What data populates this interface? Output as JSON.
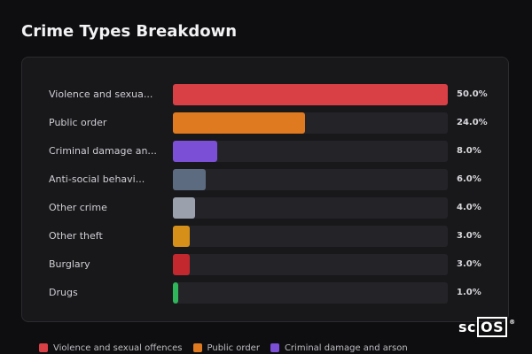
{
  "title": "Crime Types Breakdown",
  "chart_data": {
    "type": "bar",
    "orientation": "horizontal",
    "categories": [
      "Violence and sexual offences",
      "Public order",
      "Criminal damage and arson",
      "Anti-social behaviour",
      "Other crime",
      "Other theft",
      "Burglary",
      "Drugs"
    ],
    "display_labels": [
      "Violence and sexua...",
      "Public order",
      "Criminal damage an...",
      "Anti-social behavi...",
      "Other crime",
      "Other theft",
      "Burglary",
      "Drugs"
    ],
    "values": [
      50.0,
      24.0,
      8.0,
      6.0,
      4.0,
      3.0,
      3.0,
      1.0
    ],
    "value_labels": [
      "50.0%",
      "24.0%",
      "8.0%",
      "6.0%",
      "4.0%",
      "3.0%",
      "3.0%",
      "1.0%"
    ],
    "colors": [
      "#d94046",
      "#e07a20",
      "#7b4fd6",
      "#5d6b80",
      "#9aa1ad",
      "#d6901a",
      "#c2282e",
      "#2fb55a"
    ],
    "xlim": [
      0,
      50
    ],
    "grid": false,
    "legend_position": "bottom"
  },
  "legend": [
    {
      "label": "Violence and sexual offences",
      "color": "#d94046"
    },
    {
      "label": "Public order",
      "color": "#e07a20"
    },
    {
      "label": "Criminal damage and arson",
      "color": "#7b4fd6"
    }
  ],
  "logo": {
    "text_a": "sc",
    "text_b": "OS",
    "mark": "®"
  }
}
